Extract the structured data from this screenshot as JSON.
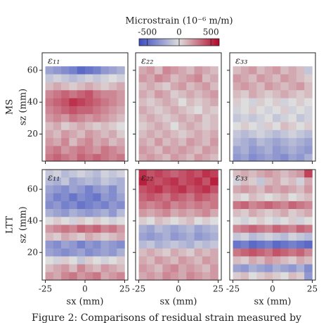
{
  "chart_data": {
    "type": "heatmap",
    "colorbar": {
      "title": "Microstrain (10⁻⁶ m/m)",
      "vlim": [
        -630,
        630
      ],
      "ticks": [
        -500,
        0,
        500
      ],
      "cmap": [
        "#3b4cc0",
        "#dddddd",
        "#b40426"
      ]
    },
    "row_labels": [
      "MS",
      "LTT"
    ],
    "xlabel": "sx (mm)",
    "ylabel": "sz (mm)",
    "xlim": [
      -27,
      27
    ],
    "xticks": [
      -25,
      0,
      25
    ],
    "sx": [
      -22.5,
      -17.5,
      -12.5,
      -7.5,
      -2.5,
      2.5,
      7.5,
      12.5,
      17.5,
      22.5
    ],
    "caption": "Figure 2: Comparisons of residual strain measured by",
    "panels": [
      {
        "label": "ε₁₁",
        "ylim": [
          3,
          71
        ],
        "yticks": [
          20,
          40,
          60
        ],
        "sz": [
          60,
          55,
          50,
          45,
          40,
          35,
          30,
          25,
          20,
          15,
          10,
          5
        ],
        "values": [
          [
            -250,
            -300,
            -350,
            -400,
            -500,
            -450,
            -400,
            -300,
            -250,
            -200
          ],
          [
            -100,
            -50,
            -100,
            -150,
            -100,
            -50,
            -100,
            -50,
            0,
            -50
          ],
          [
            100,
            150,
            100,
            50,
            100,
            150,
            100,
            50,
            100,
            150
          ],
          [
            250,
            300,
            350,
            300,
            350,
            400,
            300,
            250,
            250,
            200
          ],
          [
            300,
            350,
            400,
            500,
            450,
            400,
            350,
            300,
            250,
            200
          ],
          [
            250,
            300,
            350,
            400,
            350,
            350,
            300,
            250,
            200,
            150
          ],
          [
            200,
            250,
            200,
            300,
            250,
            200,
            250,
            200,
            150,
            100
          ],
          [
            100,
            150,
            50,
            100,
            150,
            100,
            50,
            100,
            50,
            0
          ],
          [
            150,
            100,
            200,
            150,
            100,
            200,
            150,
            100,
            150,
            50
          ],
          [
            200,
            150,
            250,
            100,
            200,
            250,
            150,
            200,
            100,
            150
          ],
          [
            250,
            300,
            200,
            250,
            300,
            250,
            200,
            300,
            250,
            200
          ],
          [
            300,
            350,
            300,
            250,
            350,
            300,
            350,
            300,
            250,
            300
          ]
        ]
      },
      {
        "label": "ε₂₂",
        "ylim": [
          3,
          71
        ],
        "yticks": [
          20,
          40,
          60
        ],
        "sz": [
          60,
          55,
          50,
          45,
          40,
          35,
          30,
          25,
          20,
          15,
          10,
          5
        ],
        "values": [
          [
            150,
            200,
            100,
            250,
            200,
            150,
            100,
            200,
            150,
            100
          ],
          [
            200,
            150,
            250,
            200,
            100,
            150,
            200,
            250,
            100,
            150
          ],
          [
            100,
            150,
            100,
            50,
            150,
            200,
            100,
            150,
            200,
            100
          ],
          [
            150,
            100,
            200,
            150,
            50,
            100,
            150,
            100,
            150,
            200
          ],
          [
            100,
            50,
            100,
            150,
            100,
            0,
            100,
            50,
            100,
            150
          ],
          [
            150,
            100,
            50,
            100,
            150,
            100,
            50,
            0,
            100,
            50
          ],
          [
            100,
            150,
            100,
            50,
            100,
            150,
            100,
            150,
            50,
            100
          ],
          [
            50,
            100,
            150,
            100,
            0,
            100,
            150,
            100,
            50,
            100
          ],
          [
            100,
            150,
            100,
            150,
            100,
            50,
            100,
            150,
            100,
            150
          ],
          [
            150,
            100,
            200,
            100,
            150,
            100,
            200,
            150,
            100,
            200
          ],
          [
            200,
            150,
            100,
            200,
            150,
            200,
            150,
            100,
            200,
            150
          ],
          [
            150,
            200,
            150,
            100,
            200,
            150,
            100,
            200,
            150,
            100
          ]
        ]
      },
      {
        "label": "ε₃₃",
        "ylim": [
          3,
          71
        ],
        "yticks": [
          20,
          40,
          60
        ],
        "sz": [
          60,
          55,
          50,
          45,
          40,
          35,
          30,
          25,
          20,
          15,
          10,
          5
        ],
        "values": [
          [
            100,
            150,
            200,
            100,
            150,
            200,
            100,
            150,
            100,
            -100
          ],
          [
            200,
            150,
            100,
            200,
            150,
            100,
            200,
            150,
            100,
            50
          ],
          [
            150,
            200,
            150,
            100,
            200,
            150,
            100,
            150,
            200,
            100
          ],
          [
            100,
            50,
            150,
            100,
            50,
            100,
            150,
            100,
            50,
            100
          ],
          [
            50,
            0,
            -50,
            50,
            0,
            50,
            -50,
            0,
            50,
            0
          ],
          [
            -50,
            0,
            50,
            0,
            -50,
            0,
            50,
            -50,
            0,
            -50
          ],
          [
            -100,
            -50,
            -100,
            -50,
            0,
            -100,
            -50,
            0,
            -100,
            -50
          ],
          [
            0,
            50,
            0,
            -50,
            50,
            0,
            100,
            50,
            0,
            50
          ],
          [
            -100,
            -150,
            -100,
            -50,
            -100,
            -150,
            -100,
            -50,
            -100,
            -150
          ],
          [
            -150,
            -200,
            -250,
            -150,
            -200,
            -250,
            -200,
            -150,
            -200,
            -250
          ],
          [
            -250,
            -200,
            -300,
            -250,
            -200,
            -300,
            -250,
            -200,
            -250,
            -300
          ],
          [
            -300,
            -250,
            -350,
            -300,
            -250,
            -300,
            -350,
            -250,
            -300,
            -200
          ]
        ]
      },
      {
        "label": "ε₁₁",
        "ylim": [
          2.5,
          72.5
        ],
        "yticks": [
          20,
          40,
          60
        ],
        "sz": [
          70,
          65,
          60,
          55,
          50,
          45,
          40,
          35,
          30,
          25,
          20,
          15,
          10,
          5
        ],
        "values": [
          [
            -100,
            -50,
            -150,
            -100,
            -50,
            -100,
            -150,
            -50,
            -100,
            -50
          ],
          [
            -150,
            -200,
            -100,
            -250,
            -200,
            -150,
            -200,
            -100,
            -150,
            -200
          ],
          [
            -250,
            -300,
            -350,
            -250,
            -300,
            -400,
            -300,
            -250,
            -350,
            -200
          ],
          [
            -300,
            -400,
            -350,
            -450,
            -350,
            -400,
            -450,
            -300,
            -350,
            -250
          ],
          [
            -350,
            -300,
            -400,
            -350,
            -450,
            -400,
            -350,
            -400,
            -300,
            -350
          ],
          [
            -200,
            -250,
            -300,
            -200,
            -250,
            -300,
            -250,
            -200,
            -300,
            -150
          ],
          [
            0,
            50,
            0,
            -50,
            50,
            0,
            50,
            0,
            -50,
            0
          ],
          [
            200,
            250,
            300,
            250,
            350,
            300,
            350,
            250,
            300,
            200
          ],
          [
            100,
            50,
            150,
            100,
            50,
            150,
            100,
            50,
            100,
            150
          ],
          [
            -300,
            -350,
            -250,
            -300,
            -400,
            -300,
            -350,
            -250,
            -300,
            -350
          ],
          [
            -250,
            -300,
            -350,
            -300,
            -250,
            -350,
            -300,
            -250,
            -300,
            -200
          ],
          [
            0,
            -50,
            50,
            0,
            -100,
            50,
            0,
            -50,
            0,
            50
          ],
          [
            100,
            150,
            200,
            100,
            250,
            150,
            100,
            200,
            150,
            100
          ],
          [
            200,
            150,
            250,
            300,
            200,
            250,
            300,
            150,
            200,
            250
          ]
        ]
      },
      {
        "label": "ε₂₂",
        "ylim": [
          2.5,
          72.5
        ],
        "yticks": [
          20,
          40,
          60
        ],
        "sz": [
          70,
          65,
          60,
          55,
          50,
          45,
          40,
          35,
          30,
          25,
          20,
          15,
          10,
          5
        ],
        "values": [
          [
            500,
            400,
            450,
            400,
            350,
            400,
            450,
            400,
            500,
            450
          ],
          [
            550,
            450,
            400,
            450,
            500,
            400,
            450,
            500,
            400,
            550
          ],
          [
            400,
            450,
            500,
            400,
            450,
            500,
            400,
            450,
            500,
            400
          ],
          [
            350,
            400,
            350,
            300,
            400,
            350,
            300,
            400,
            350,
            300
          ],
          [
            300,
            250,
            300,
            350,
            250,
            300,
            250,
            300,
            250,
            300
          ],
          [
            200,
            150,
            200,
            250,
            150,
            200,
            150,
            200,
            250,
            150
          ],
          [
            50,
            0,
            100,
            50,
            0,
            50,
            100,
            0,
            50,
            0
          ],
          [
            -200,
            -250,
            -150,
            -200,
            -250,
            -200,
            -150,
            -250,
            -200,
            -150
          ],
          [
            -250,
            -300,
            -250,
            -200,
            -300,
            -250,
            -200,
            -300,
            -250,
            -200
          ],
          [
            -150,
            -100,
            -200,
            -150,
            -100,
            -150,
            -200,
            -100,
            -150,
            -100
          ],
          [
            100,
            150,
            100,
            50,
            150,
            100,
            50,
            150,
            100,
            150
          ],
          [
            150,
            100,
            200,
            150,
            100,
            200,
            150,
            100,
            200,
            150
          ],
          [
            200,
            150,
            100,
            200,
            250,
            150,
            200,
            150,
            100,
            200
          ],
          [
            150,
            200,
            150,
            250,
            200,
            150,
            250,
            200,
            150,
            200
          ]
        ]
      },
      {
        "label": "ε₃₃",
        "ylim": [
          2.5,
          72.5
        ],
        "yticks": [
          20,
          40,
          60
        ],
        "sz": [
          70,
          65,
          60,
          55,
          50,
          45,
          40,
          35,
          30,
          25,
          20,
          15,
          10,
          5
        ],
        "values": [
          [
            100,
            150,
            100,
            150,
            200,
            150,
            100,
            150,
            200,
            450
          ],
          [
            -50,
            100,
            50,
            -100,
            100,
            150,
            50,
            100,
            -50,
            150
          ],
          [
            150,
            200,
            150,
            100,
            200,
            150,
            200,
            150,
            100,
            200
          ],
          [
            50,
            0,
            100,
            50,
            0,
            50,
            100,
            0,
            50,
            100
          ],
          [
            300,
            350,
            250,
            300,
            350,
            300,
            250,
            350,
            300,
            250
          ],
          [
            100,
            50,
            150,
            100,
            50,
            100,
            150,
            50,
            100,
            150
          ],
          [
            0,
            -50,
            0,
            50,
            0,
            -50,
            0,
            50,
            -50,
            0
          ],
          [
            250,
            300,
            350,
            300,
            250,
            350,
            300,
            250,
            350,
            300
          ],
          [
            -100,
            -50,
            -150,
            -100,
            -50,
            -100,
            -150,
            -50,
            -100,
            -150
          ],
          [
            -450,
            -400,
            -500,
            -450,
            -400,
            -500,
            -450,
            -400,
            -450,
            -500
          ],
          [
            300,
            350,
            400,
            350,
            300,
            400,
            350,
            300,
            350,
            250
          ],
          [
            100,
            50,
            150,
            100,
            200,
            150,
            100,
            50,
            150,
            100
          ],
          [
            -250,
            -300,
            -200,
            -250,
            -300,
            -200,
            -250,
            -300,
            -200,
            -350
          ],
          [
            50,
            100,
            0,
            50,
            100,
            50,
            0,
            100,
            50,
            -300
          ]
        ]
      }
    ]
  }
}
